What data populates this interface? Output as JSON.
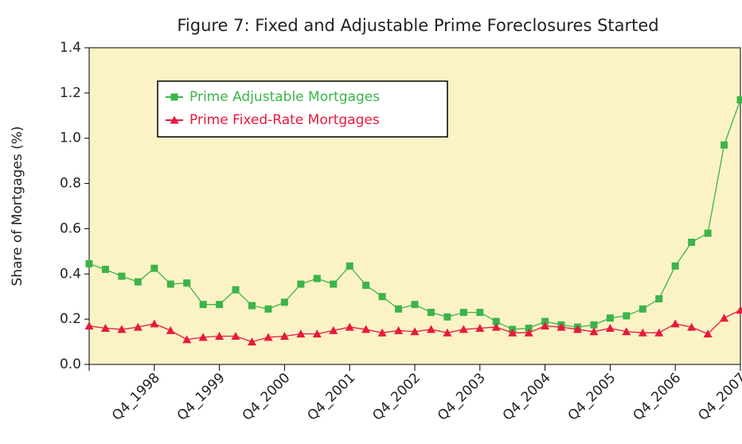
{
  "chart_data": {
    "type": "line",
    "title": "Figure 7: Fixed and Adjustable Prime Foreclosures Started",
    "y_label": "Share of Mortgages (%)",
    "categories": [
      null,
      null,
      null,
      null,
      "Q4_1998",
      null,
      null,
      null,
      "Q4_1999",
      null,
      null,
      null,
      "Q4_2000",
      null,
      null,
      null,
      "Q4_2001",
      null,
      null,
      null,
      "Q4_2002",
      null,
      null,
      null,
      "Q4_2003",
      null,
      null,
      null,
      "Q4_2004",
      null,
      null,
      null,
      "Q4_2005",
      null,
      null,
      null,
      "Q4_2006",
      null,
      null,
      null,
      "Q4_2007"
    ],
    "series": [
      {
        "name": "Prime Adjustable Mortgages",
        "color": "#3cb44a",
        "marker": "square",
        "values": [
          0.445,
          0.42,
          0.39,
          0.365,
          0.425,
          0.355,
          0.36,
          0.265,
          0.265,
          0.33,
          0.26,
          0.245,
          0.275,
          0.355,
          0.38,
          0.355,
          0.435,
          0.35,
          0.3,
          0.245,
          0.265,
          0.23,
          0.21,
          0.23,
          0.23,
          0.19,
          0.155,
          0.16,
          0.19,
          0.175,
          0.165,
          0.175,
          0.205,
          0.215,
          0.245,
          0.29,
          0.435,
          0.54,
          0.58,
          0.97,
          1.17
        ]
      },
      {
        "name": "Prime Fixed-Rate Mortgages",
        "color": "#e8193c",
        "marker": "triangle",
        "values": [
          0.17,
          0.16,
          0.155,
          0.165,
          0.18,
          0.15,
          0.11,
          0.12,
          0.125,
          0.125,
          0.1,
          0.12,
          0.125,
          0.135,
          0.135,
          0.15,
          0.165,
          0.155,
          0.14,
          0.15,
          0.145,
          0.155,
          0.14,
          0.155,
          0.16,
          0.165,
          0.14,
          0.14,
          0.17,
          0.165,
          0.155,
          0.145,
          0.16,
          0.145,
          0.14,
          0.14,
          0.18,
          0.165,
          0.135,
          0.205,
          0.24
        ]
      }
    ],
    "ylim": [
      0,
      1.4
    ],
    "yticks": [
      {
        "value": 0,
        "label": "0.0"
      },
      0.2,
      0.4,
      0.6,
      0.8,
      {
        "value": 1,
        "label": "1.0"
      },
      1.2,
      1.4
    ],
    "plot_background": "#fbf3c6"
  }
}
